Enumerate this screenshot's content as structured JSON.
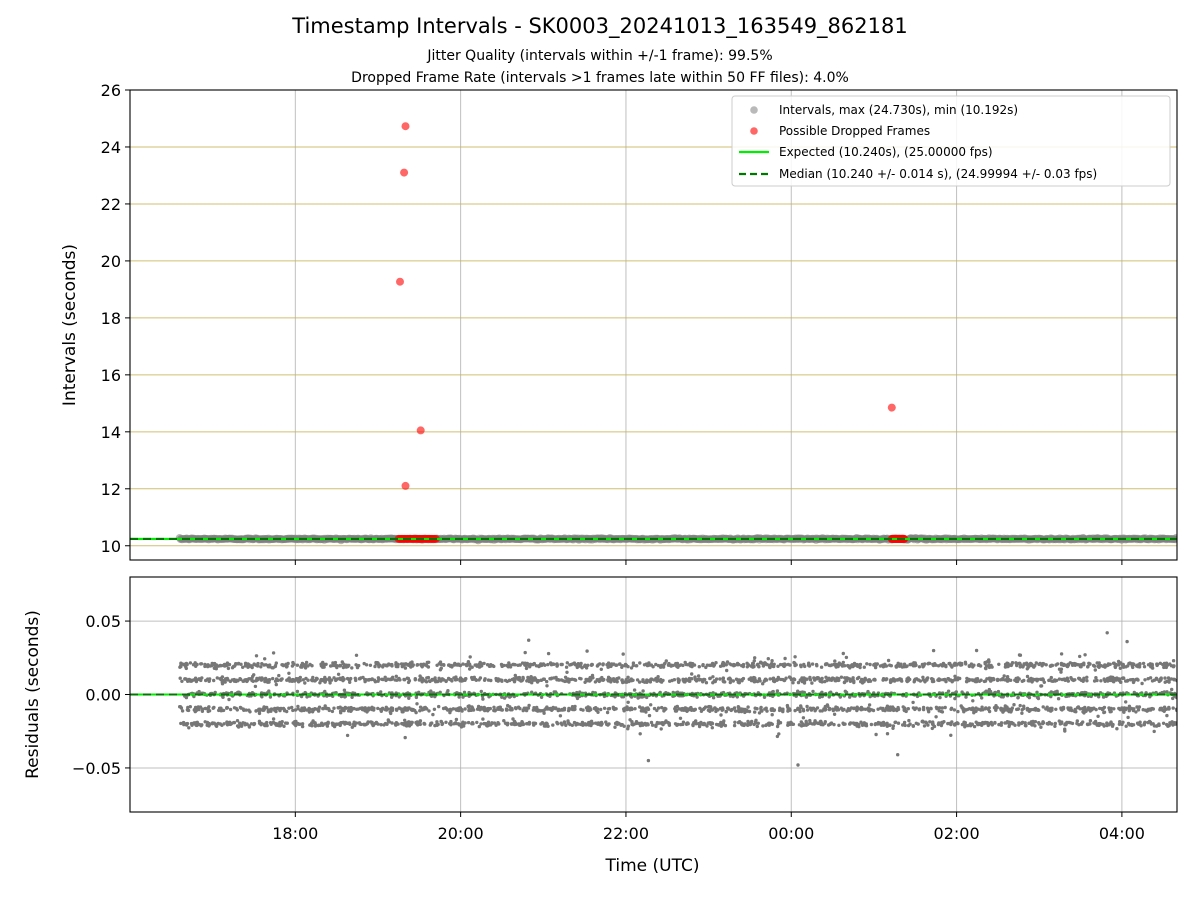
{
  "chart_data": [
    {
      "type": "scatter",
      "title": "Timestamp Intervals - SK0003_20241013_163549_862181",
      "subtitle_lines": [
        "Jitter Quality (intervals within +/-1 frame): 99.5%",
        "Dropped Frame Rate (intervals >1 frames late within 50 FF files): 4.0%"
      ],
      "xlabel": "Time (UTC)",
      "ylabel": "Intervals (seconds)",
      "xlim": [
        "2024-10-13T16:00",
        "2024-10-14T04:40"
      ],
      "ylim": [
        9.5,
        26
      ],
      "yticks": [
        10,
        12,
        14,
        16,
        18,
        20,
        22,
        24,
        26
      ],
      "xticks": [
        {
          "t": "2024-10-13T18:00",
          "label": "18:00"
        },
        {
          "t": "2024-10-13T20:00",
          "label": "20:00"
        },
        {
          "t": "2024-10-13T22:00",
          "label": "22:00"
        },
        {
          "t": "2024-10-14T00:00",
          "label": "00:00"
        },
        {
          "t": "2024-10-14T02:00",
          "label": "02:00"
        },
        {
          "t": "2024-10-14T04:00",
          "label": "04:00"
        }
      ],
      "grid": true,
      "legend_position": "top-right",
      "series": [
        {
          "name": "Intervals, max (24.730s), min (10.192s)",
          "color": "#808080",
          "marker": "dot",
          "x_range": [
            "2024-10-13T16:36",
            "2024-10-14T04:40"
          ],
          "y_center": 10.24,
          "y_spread": 0.014
        },
        {
          "name": "Possible Dropped Frames",
          "color": "#ff0000",
          "marker": "dot",
          "points": [
            {
              "t": "2024-10-13T19:20",
              "y": 24.73
            },
            {
              "t": "2024-10-13T19:19",
              "y": 23.1
            },
            {
              "t": "2024-10-13T19:16",
              "y": 19.27
            },
            {
              "t": "2024-10-13T19:31",
              "y": 14.05
            },
            {
              "t": "2024-10-13T19:20",
              "y": 12.1
            },
            {
              "t": "2024-10-14T01:13",
              "y": 14.85
            }
          ],
          "clusters": [
            {
              "from": "2024-10-13T19:15",
              "to": "2024-10-13T19:42",
              "y": 10.24
            },
            {
              "from": "2024-10-14T01:13",
              "to": "2024-10-14T01:22",
              "y": 10.24
            }
          ]
        },
        {
          "name": "Expected (10.240s), (25.00000 fps)",
          "color": "#00ee00",
          "style": "solid",
          "y": 10.24
        },
        {
          "name": "Median (10.240 +/- 0.014 s), (24.99994 +/- 0.03 fps)",
          "color": "#007700",
          "style": "dashed",
          "y": 10.24
        }
      ]
    },
    {
      "type": "scatter",
      "xlabel": "Time (UTC)",
      "ylabel": "Residuals (seconds)",
      "xlim": [
        "2024-10-13T16:00",
        "2024-10-14T04:40"
      ],
      "ylim": [
        -0.08,
        0.08
      ],
      "yticks": [
        {
          "v": -0.05,
          "label": "−0.05"
        },
        {
          "v": 0.0,
          "label": "0.00"
        },
        {
          "v": 0.05,
          "label": "0.05"
        }
      ],
      "grid": true,
      "series": [
        {
          "color": "#777777",
          "marker": "dot",
          "x_range": [
            "2024-10-13T16:36",
            "2024-10-14T04:40"
          ],
          "bands": [
            -0.02,
            -0.01,
            0.0,
            0.01,
            0.02
          ],
          "outlier_range": [
            -0.048,
            0.042
          ]
        },
        {
          "color": "#00ee00",
          "style": "solid",
          "y": 0.0
        },
        {
          "color": "#007700",
          "style": "dashed",
          "y": 0.0
        }
      ]
    }
  ]
}
